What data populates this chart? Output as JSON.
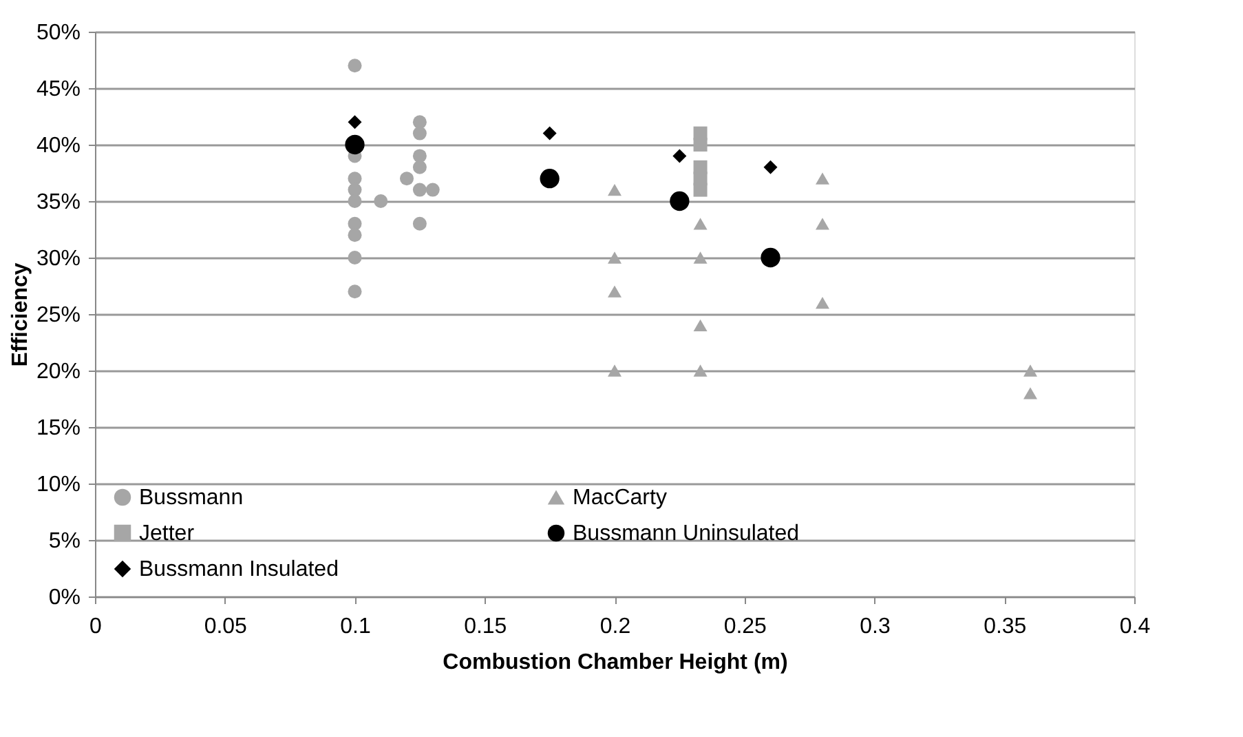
{
  "chart_data": {
    "type": "scatter",
    "xlabel": "Combustion Chamber Height (m)",
    "ylabel": "Efficiency",
    "xlim": [
      0,
      0.4
    ],
    "xticks": [
      0,
      0.05,
      0.1,
      0.15,
      0.2,
      0.25,
      0.3,
      0.35,
      0.4
    ],
    "ylim": [
      0,
      50
    ],
    "yticks": [
      {
        "value": 0,
        "label": "0%"
      },
      {
        "value": 5,
        "label": "5%"
      },
      {
        "value": 10,
        "label": "10%"
      },
      {
        "value": 15,
        "label": "15%"
      },
      {
        "value": 20,
        "label": "20%"
      },
      {
        "value": 25,
        "label": "25%"
      },
      {
        "value": 30,
        "label": "30%"
      },
      {
        "value": 35,
        "label": "35%"
      },
      {
        "value": 40,
        "label": "40%"
      },
      {
        "value": 45,
        "label": "45%"
      },
      {
        "value": 50,
        "label": "50%"
      }
    ],
    "grid": "y",
    "legend": "bottom left",
    "series": [
      {
        "name": "Bussmann",
        "color": "#a6a6a6",
        "marker": "circle",
        "x": [
          0.1,
          0.1,
          0.1,
          0.1,
          0.1,
          0.1,
          0.1,
          0.1,
          0.1,
          0.11,
          0.12,
          0.125,
          0.125,
          0.125,
          0.125,
          0.125,
          0.125,
          0.13
        ],
        "values": [
          47,
          39,
          37,
          36,
          35,
          33,
          32,
          30,
          27,
          35,
          37,
          42,
          41,
          39,
          38,
          36,
          33,
          36
        ]
      },
      {
        "name": "MacCarty",
        "color": "#a6a6a6",
        "marker": "triangle",
        "x": [
          0.2,
          0.2,
          0.2,
          0.2,
          0.233,
          0.233,
          0.233,
          0.233,
          0.28,
          0.28,
          0.28,
          0.36,
          0.36
        ],
        "values": [
          36,
          30,
          27,
          20,
          33,
          30,
          24,
          20,
          37,
          33,
          26,
          20,
          18
        ]
      },
      {
        "name": "Jetter",
        "color": "#a6a6a6",
        "marker": "square",
        "x": [
          0.233,
          0.233,
          0.233,
          0.233,
          0.233
        ],
        "values": [
          41,
          40,
          38,
          37,
          36
        ]
      },
      {
        "name": "Bussmann Uninsulated",
        "color": "#000000",
        "marker": "circle",
        "x": [
          0.1,
          0.175,
          0.225,
          0.26
        ],
        "values": [
          40,
          37,
          35,
          30
        ]
      },
      {
        "name": "Bussmann Insulated",
        "color": "#000000",
        "marker": "diamond",
        "x": [
          0.1,
          0.175,
          0.225,
          0.26
        ],
        "values": [
          42,
          41,
          39,
          38
        ]
      }
    ]
  }
}
